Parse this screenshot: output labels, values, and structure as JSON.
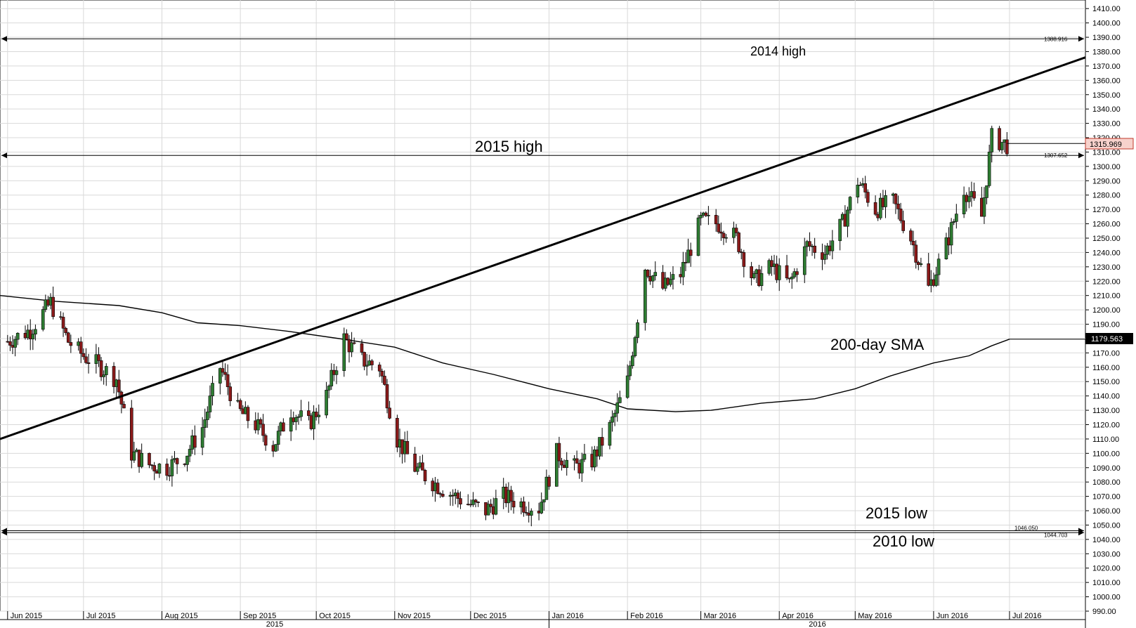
{
  "chart_data": {
    "type": "candlestick",
    "instrument_axis": "right",
    "ylim": [
      990,
      1415
    ],
    "y_ticks": [
      "1410.00",
      "1400.00",
      "1390.00",
      "1380.00",
      "1370.00",
      "1360.00",
      "1350.00",
      "1340.00",
      "1330.00",
      "1320.00",
      "1310.00",
      "1300.00",
      "1290.00",
      "1280.00",
      "1270.00",
      "1260.00",
      "1250.00",
      "1240.00",
      "1230.00",
      "1220.00",
      "1210.00",
      "1200.00",
      "1190.00",
      "1180.00",
      "1170.00",
      "1160.00",
      "1150.00",
      "1140.00",
      "1130.00",
      "1120.00",
      "1110.00",
      "1100.00",
      "1090.00",
      "1080.00",
      "1070.00",
      "1060.00",
      "1050.00",
      "1040.00",
      "1030.00",
      "1020.00",
      "1010.00",
      "1000.00",
      "990.00"
    ],
    "month_labels": [
      "Jun 2015",
      "Jul 2015",
      "Aug 2015",
      "Sep 2015",
      "Oct 2015",
      "Nov 2015",
      "Dec 2015",
      "Jan 2016",
      "Feb 2016",
      "Mar 2016",
      "Apr 2016",
      "May 2016",
      "Jun 2016",
      "Jul 2016"
    ],
    "year_labels": [
      "2015",
      "2016"
    ],
    "grid": true,
    "levels": [
      {
        "name": "2014 high",
        "value": 1388.916,
        "tag": "1388.916"
      },
      {
        "name": "2015 high",
        "value": 1307.652,
        "tag": "1307.652"
      },
      {
        "name": "2015 low",
        "value": 1046.05,
        "tag": "1046.050"
      },
      {
        "name": "2010 low",
        "value": 1044.703,
        "tag": "1044.703"
      }
    ],
    "annotations": {
      "high_2014": "2014 high",
      "high_2015": "2015 high",
      "sma": "200-day SMA",
      "low_2015": "2015 low",
      "low_2010": "2010 low"
    },
    "trendline": {
      "start": {
        "date": "2015-05-29",
        "value": 1110
      },
      "end": {
        "date": "2016-07-31",
        "value": 1376
      }
    },
    "current_price": "1315.969",
    "sma_value": "1179.563",
    "sma_200": [
      {
        "date": "2015-05-29",
        "v": 1210
      },
      {
        "date": "2015-06-20",
        "v": 1206
      },
      {
        "date": "2015-07-15",
        "v": 1203
      },
      {
        "date": "2015-08-01",
        "v": 1198
      },
      {
        "date": "2015-08-15",
        "v": 1191
      },
      {
        "date": "2015-09-01",
        "v": 1189
      },
      {
        "date": "2015-09-20",
        "v": 1185
      },
      {
        "date": "2015-10-10",
        "v": 1180
      },
      {
        "date": "2015-11-01",
        "v": 1174
      },
      {
        "date": "2015-11-20",
        "v": 1163
      },
      {
        "date": "2015-12-10",
        "v": 1155
      },
      {
        "date": "2016-01-01",
        "v": 1145
      },
      {
        "date": "2016-01-20",
        "v": 1138
      },
      {
        "date": "2016-02-01",
        "v": 1131
      },
      {
        "date": "2016-02-20",
        "v": 1129
      },
      {
        "date": "2016-03-05",
        "v": 1130
      },
      {
        "date": "2016-03-25",
        "v": 1135
      },
      {
        "date": "2016-04-15",
        "v": 1138
      },
      {
        "date": "2016-05-01",
        "v": 1145
      },
      {
        "date": "2016-05-15",
        "v": 1154
      },
      {
        "date": "2016-06-01",
        "v": 1163
      },
      {
        "date": "2016-06-15",
        "v": 1168
      },
      {
        "date": "2016-06-24",
        "v": 1175
      },
      {
        "date": "2016-07-01",
        "v": 1179.563
      }
    ],
    "candles": [
      {
        "date": "2015-06-01",
        "v": 1178
      },
      {
        "date": "2015-06-10",
        "v": 1186
      },
      {
        "date": "2015-06-18",
        "v": 1205
      },
      {
        "date": "2015-06-25",
        "v": 1178
      },
      {
        "date": "2015-07-01",
        "v": 1168
      },
      {
        "date": "2015-07-08",
        "v": 1160
      },
      {
        "date": "2015-07-14",
        "v": 1152
      },
      {
        "date": "2015-07-20",
        "v": 1100
      },
      {
        "date": "2015-07-27",
        "v": 1092
      },
      {
        "date": "2015-08-03",
        "v": 1090
      },
      {
        "date": "2015-08-10",
        "v": 1098
      },
      {
        "date": "2015-08-17",
        "v": 1118
      },
      {
        "date": "2015-08-24",
        "v": 1160
      },
      {
        "date": "2015-08-31",
        "v": 1130
      },
      {
        "date": "2015-09-07",
        "v": 1120
      },
      {
        "date": "2015-09-14",
        "v": 1105
      },
      {
        "date": "2015-09-21",
        "v": 1130
      },
      {
        "date": "2015-09-28",
        "v": 1120
      },
      {
        "date": "2015-10-05",
        "v": 1140
      },
      {
        "date": "2015-10-12",
        "v": 1180
      },
      {
        "date": "2015-10-19",
        "v": 1165
      },
      {
        "date": "2015-10-26",
        "v": 1160
      },
      {
        "date": "2015-11-02",
        "v": 1110
      },
      {
        "date": "2015-11-09",
        "v": 1090
      },
      {
        "date": "2015-11-16",
        "v": 1080
      },
      {
        "date": "2015-11-23",
        "v": 1072
      },
      {
        "date": "2015-11-30",
        "v": 1065
      },
      {
        "date": "2015-12-07",
        "v": 1060
      },
      {
        "date": "2015-12-14",
        "v": 1070
      },
      {
        "date": "2015-12-21",
        "v": 1065
      },
      {
        "date": "2015-12-28",
        "v": 1062
      },
      {
        "date": "2016-01-04",
        "v": 1100
      },
      {
        "date": "2016-01-11",
        "v": 1090
      },
      {
        "date": "2016-01-18",
        "v": 1095
      },
      {
        "date": "2016-01-25",
        "v": 1118
      },
      {
        "date": "2016-02-01",
        "v": 1150
      },
      {
        "date": "2016-02-08",
        "v": 1230
      },
      {
        "date": "2016-02-15",
        "v": 1215
      },
      {
        "date": "2016-02-22",
        "v": 1225
      },
      {
        "date": "2016-03-01",
        "v": 1262
      },
      {
        "date": "2016-03-08",
        "v": 1260
      },
      {
        "date": "2016-03-15",
        "v": 1250
      },
      {
        "date": "2016-03-22",
        "v": 1220
      },
      {
        "date": "2016-03-29",
        "v": 1230
      },
      {
        "date": "2016-04-05",
        "v": 1218
      },
      {
        "date": "2016-04-12",
        "v": 1245
      },
      {
        "date": "2016-04-19",
        "v": 1240
      },
      {
        "date": "2016-04-26",
        "v": 1260
      },
      {
        "date": "2016-05-02",
        "v": 1290
      },
      {
        "date": "2016-05-09",
        "v": 1270
      },
      {
        "date": "2016-05-16",
        "v": 1275
      },
      {
        "date": "2016-05-23",
        "v": 1250
      },
      {
        "date": "2016-05-30",
        "v": 1215
      },
      {
        "date": "2016-06-06",
        "v": 1245
      },
      {
        "date": "2016-06-13",
        "v": 1285
      },
      {
        "date": "2016-06-20",
        "v": 1265
      },
      {
        "date": "2016-06-24",
        "v": 1320
      },
      {
        "date": "2016-06-30",
        "v": 1315
      }
    ]
  }
}
